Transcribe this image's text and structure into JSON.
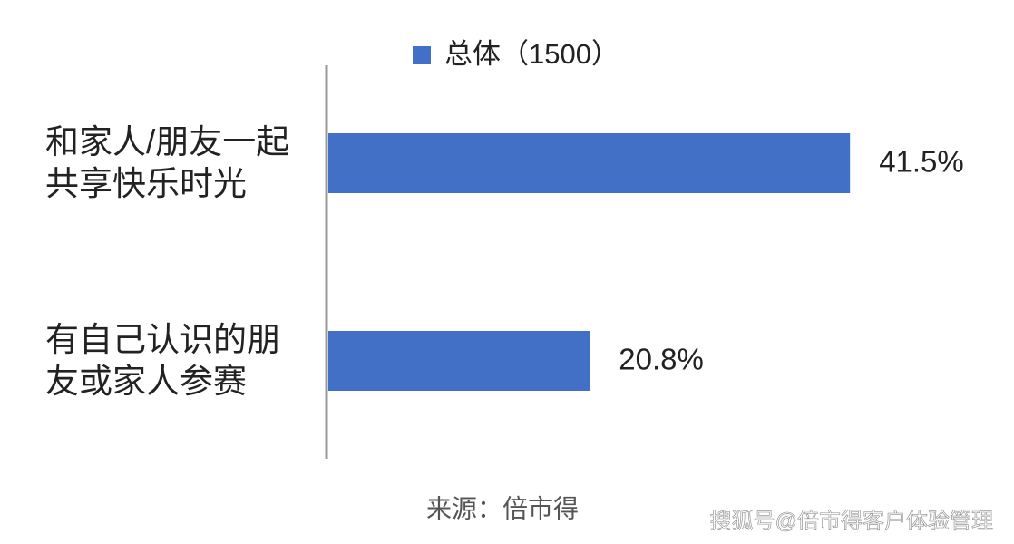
{
  "chart_data": {
    "type": "hbar",
    "categories": [
      "和家人/朋友一起共享快乐时光",
      "有自己认识的朋友或家人参赛"
    ],
    "series": [
      {
        "name": "总体（1500）",
        "color": "#4270c7",
        "values": [
          41.5,
          20.8
        ],
        "value_labels": [
          "41.5%",
          "20.8%"
        ]
      }
    ],
    "source": "来源：倍市得",
    "watermark": "搜狐号@倍市得客户体验管理"
  }
}
